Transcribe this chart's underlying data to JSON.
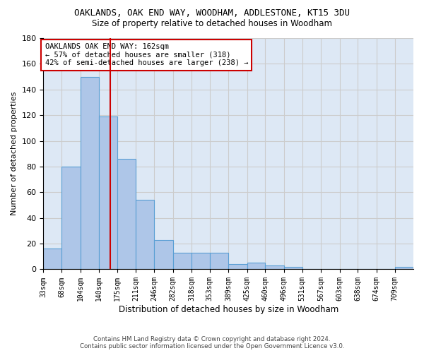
{
  "title": "OAKLANDS, OAK END WAY, WOODHAM, ADDLESTONE, KT15 3DU",
  "subtitle": "Size of property relative to detached houses in Woodham",
  "xlabel": "Distribution of detached houses by size in Woodham",
  "ylabel": "Number of detached properties",
  "footer_line1": "Contains HM Land Registry data © Crown copyright and database right 2024.",
  "footer_line2": "Contains public sector information licensed under the Open Government Licence v3.0.",
  "annotation_line1": "OAKLANDS OAK END WAY: 162sqm",
  "annotation_line2": "← 57% of detached houses are smaller (318)",
  "annotation_line3": "42% of semi-detached houses are larger (238) →",
  "property_size": 162,
  "bar_edges": [
    33,
    68,
    104,
    140,
    175,
    211,
    246,
    282,
    318,
    353,
    389,
    425,
    460,
    496,
    531,
    567,
    603,
    638,
    674,
    709,
    745
  ],
  "bar_heights": [
    16,
    80,
    150,
    119,
    86,
    54,
    23,
    13,
    13,
    13,
    4,
    5,
    3,
    2,
    0,
    0,
    0,
    0,
    0,
    2
  ],
  "bar_color": "#aec6e8",
  "bar_edge_color": "#5a9fd4",
  "vline_color": "#cc0000",
  "vline_x": 162,
  "annotation_box_color": "#cc0000",
  "annotation_text_color": "#000000",
  "grid_color": "#cccccc",
  "ax_facecolor": "#dde8f5",
  "background_color": "#ffffff",
  "ylim": [
    0,
    180
  ],
  "yticks": [
    0,
    20,
    40,
    60,
    80,
    100,
    120,
    140,
    160,
    180
  ]
}
